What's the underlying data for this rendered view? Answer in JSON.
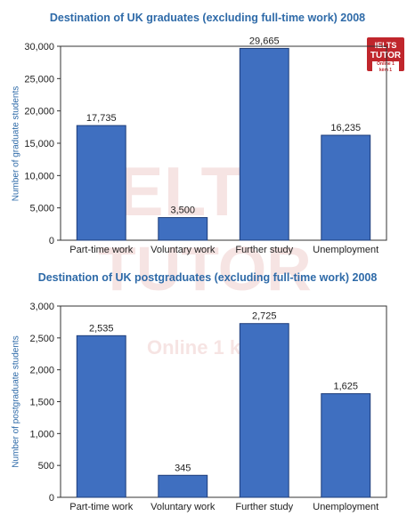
{
  "logo": {
    "line1": "IELTS",
    "line2": "TUTOR",
    "line3": "Online 1 kèm 1"
  },
  "watermark": {
    "line1": "IELTS",
    "line2": "TUTOR",
    "line3": "Online 1 kèm 1"
  },
  "colors": {
    "bar_fill": "#3f6fc0",
    "bar_stroke": "#1d3d7a",
    "title": "#2e6aa8",
    "ylabel": "#2e6aa8",
    "axis": "#333333",
    "logo": "#c0262c"
  },
  "chart_data": [
    {
      "type": "bar",
      "title": "Destination of UK graduates (excluding full-time work) 2008",
      "xlabel": "",
      "ylabel": "Number of graduate students",
      "categories": [
        "Part-time work",
        "Voluntary work",
        "Further study",
        "Unemployment"
      ],
      "values": [
        17735,
        3500,
        29665,
        16235
      ],
      "value_labels": [
        "17,735",
        "3,500",
        "29,665",
        "16,235"
      ],
      "ylim": [
        0,
        30000
      ],
      "yticks": [
        0,
        5000,
        10000,
        15000,
        20000,
        25000,
        30000
      ],
      "ytick_labels": [
        "0",
        "5,000",
        "10,000",
        "15,000",
        "20,000",
        "25,000",
        "30,000"
      ],
      "grid": false,
      "legend": "none"
    },
    {
      "type": "bar",
      "title": "Destination of UK postgraduates (excluding full-time work) 2008",
      "xlabel": "",
      "ylabel": "Number of postgraduate students",
      "categories": [
        "Part-time work",
        "Voluntary work",
        "Further study",
        "Unemployment"
      ],
      "values": [
        2535,
        345,
        2725,
        1625
      ],
      "value_labels": [
        "2,535",
        "345",
        "2,725",
        "1,625"
      ],
      "ylim": [
        0,
        3000
      ],
      "yticks": [
        0,
        500,
        1000,
        1500,
        2000,
        2500,
        3000
      ],
      "ytick_labels": [
        "0",
        "500",
        "1,000",
        "1,500",
        "2,000",
        "2,500",
        "3,000"
      ],
      "grid": false,
      "legend": "none"
    }
  ]
}
